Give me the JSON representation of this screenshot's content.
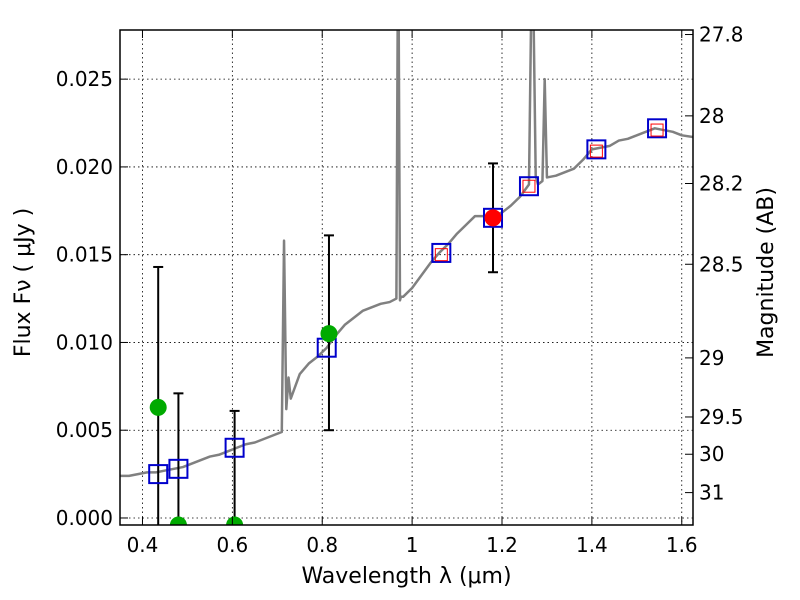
{
  "chart_data": {
    "type": "scatter",
    "xlabel": "Wavelength  λ (μm)",
    "ylabel": "Flux  Fν  ( μJy )",
    "y2label": "Magnitude (AB)",
    "xlim": [
      0.35,
      1.625
    ],
    "ylim": [
      -0.0004,
      0.0278
    ],
    "grid": true,
    "x_ticks": [
      0.4,
      0.6,
      0.8,
      1.0,
      1.2,
      1.4,
      1.6
    ],
    "x_tick_labels": [
      "0.4",
      "0.6",
      "0.8",
      "1",
      "1.2",
      "1.4",
      "1.6"
    ],
    "y_ticks": [
      0.0,
      0.005,
      0.01,
      0.015,
      0.02,
      0.025
    ],
    "y_tick_labels": [
      "0.000",
      "0.005",
      "0.010",
      "0.015",
      "0.020",
      "0.025"
    ],
    "mag_ticks": [
      27.8,
      28,
      28.2,
      28.5,
      29,
      29.5,
      30,
      31
    ],
    "mag_tick_labels": [
      "27.8",
      "28",
      "28.2",
      "28.5",
      "29",
      "29.5",
      "30",
      "31"
    ],
    "series": [
      {
        "name": "SED model",
        "kind": "line",
        "color": "#808080",
        "x": [
          0.35,
          0.37,
          0.39,
          0.41,
          0.43,
          0.45,
          0.47,
          0.49,
          0.51,
          0.53,
          0.55,
          0.57,
          0.59,
          0.61,
          0.63,
          0.65,
          0.67,
          0.69,
          0.71,
          0.715,
          0.72,
          0.725,
          0.73,
          0.74,
          0.75,
          0.77,
          0.79,
          0.81,
          0.83,
          0.85,
          0.87,
          0.89,
          0.91,
          0.93,
          0.95,
          0.965,
          0.968,
          0.97,
          0.973,
          0.975,
          0.98,
          1.0,
          1.02,
          1.04,
          1.06,
          1.08,
          1.1,
          1.12,
          1.14,
          1.16,
          1.18,
          1.2,
          1.22,
          1.24,
          1.26,
          1.265,
          1.27,
          1.275,
          1.28,
          1.29,
          1.295,
          1.3,
          1.32,
          1.34,
          1.36,
          1.38,
          1.4,
          1.42,
          1.44,
          1.46,
          1.48,
          1.5,
          1.52,
          1.54,
          1.56,
          1.58,
          1.6,
          1.625
        ],
        "y": [
          0.0024,
          0.0024,
          0.0025,
          0.0026,
          0.0026,
          0.0027,
          0.0028,
          0.0029,
          0.0031,
          0.0033,
          0.0035,
          0.0036,
          0.0038,
          0.004,
          0.0042,
          0.0043,
          0.0045,
          0.0047,
          0.0049,
          0.0158,
          0.0062,
          0.008,
          0.0068,
          0.0075,
          0.0082,
          0.0088,
          0.0092,
          0.0097,
          0.0104,
          0.011,
          0.0114,
          0.0118,
          0.012,
          0.0122,
          0.0123,
          0.0125,
          0.029,
          0.029,
          0.0124,
          0.0126,
          0.0126,
          0.0131,
          0.0138,
          0.0145,
          0.0151,
          0.0156,
          0.0162,
          0.0167,
          0.0172,
          0.0172,
          0.0172,
          0.0174,
          0.0178,
          0.0183,
          0.019,
          0.029,
          0.029,
          0.0195,
          0.019,
          0.0192,
          0.025,
          0.0194,
          0.0195,
          0.0197,
          0.0199,
          0.0204,
          0.021,
          0.0211,
          0.0212,
          0.0215,
          0.0216,
          0.0218,
          0.022,
          0.0222,
          0.0221,
          0.022,
          0.0218,
          0.0217
        ]
      },
      {
        "name": "model photometry",
        "kind": "open-square",
        "color": "#0000cc",
        "x": [
          0.435,
          0.48,
          0.605,
          0.81,
          1.065,
          1.18,
          1.26,
          1.41,
          1.545
        ],
        "y": [
          0.0025,
          0.0028,
          0.004,
          0.0097,
          0.0151,
          0.0171,
          0.0189,
          0.021,
          0.0222
        ]
      },
      {
        "name": "inner red squares",
        "kind": "small-open-square",
        "color": "#ff0000",
        "x": [
          1.065,
          1.26,
          1.41,
          1.545
        ],
        "y": [
          0.015,
          0.0189,
          0.0209,
          0.0221
        ]
      },
      {
        "name": "observed (green)",
        "kind": "filled-circle",
        "color": "#00aa00",
        "x": [
          0.435,
          0.48,
          0.605,
          0.815
        ],
        "y": [
          0.0063,
          -0.0004,
          -0.0004,
          0.0105
        ],
        "err_low": [
          0.0,
          0.0,
          0.0,
          0.005
        ],
        "err_high": [
          0.0143,
          0.0071,
          0.0061,
          0.0161
        ]
      },
      {
        "name": "observed (red)",
        "kind": "filled-circle",
        "color": "#ff0000",
        "x": [
          1.18
        ],
        "y": [
          0.0171
        ],
        "err_low": [
          0.014
        ],
        "err_high": [
          0.0202
        ]
      }
    ]
  }
}
